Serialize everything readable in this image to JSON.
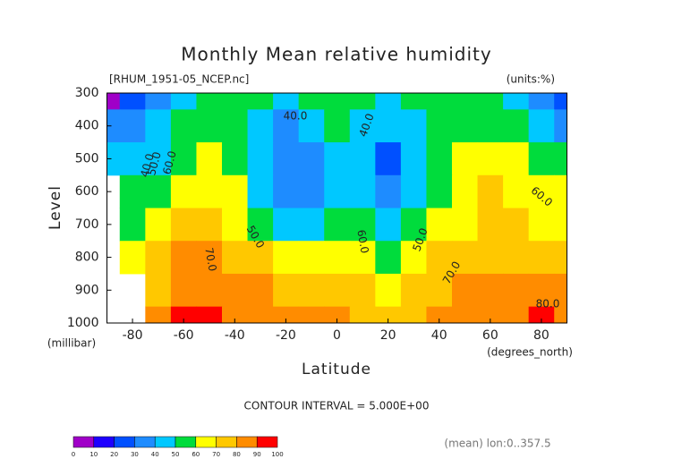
{
  "chart_data": {
    "type": "contour",
    "title": "Monthly Mean relative humidity",
    "subtitle": "[RHUM_1951-05_NCEP.nc]",
    "units_label": "(units:%)",
    "x_label": "Latitude",
    "x_unit": "(degrees_north)",
    "y_label": "Level",
    "y_unit": "(millibar)",
    "contour_interval": "CONTOUR INTERVAL = 5.000E+00",
    "footnote": "(mean) lon:0..357.5",
    "x": [
      -90,
      -80,
      -70,
      -60,
      -50,
      -40,
      -30,
      -20,
      -10,
      0,
      10,
      20,
      30,
      40,
      50,
      60,
      70,
      80,
      90
    ],
    "levels": [
      300,
      400,
      500,
      600,
      700,
      800,
      900,
      1000
    ],
    "values": [
      [
        5,
        20,
        30,
        45,
        50,
        55,
        50,
        45,
        50,
        55,
        50,
        45,
        50,
        55,
        55,
        50,
        40,
        30,
        25
      ],
      [
        30,
        30,
        40,
        50,
        55,
        50,
        45,
        35,
        40,
        50,
        45,
        40,
        45,
        50,
        55,
        55,
        55,
        45,
        35
      ],
      [
        45,
        45,
        45,
        55,
        60,
        55,
        45,
        35,
        35,
        45,
        40,
        25,
        40,
        50,
        60,
        60,
        60,
        55,
        50
      ],
      [
        null,
        50,
        55,
        60,
        65,
        60,
        45,
        35,
        35,
        45,
        45,
        35,
        45,
        55,
        65,
        70,
        65,
        60,
        60
      ],
      [
        null,
        55,
        65,
        70,
        70,
        60,
        50,
        40,
        45,
        55,
        55,
        40,
        50,
        60,
        65,
        70,
        70,
        65,
        65
      ],
      [
        null,
        60,
        70,
        80,
        80,
        75,
        70,
        60,
        60,
        65,
        65,
        55,
        65,
        70,
        75,
        75,
        75,
        75,
        75
      ],
      [
        null,
        null,
        75,
        85,
        85,
        85,
        80,
        75,
        75,
        75,
        70,
        65,
        70,
        75,
        80,
        80,
        80,
        80,
        80
      ],
      [
        null,
        null,
        80,
        90,
        90,
        85,
        85,
        80,
        80,
        80,
        75,
        75,
        75,
        80,
        85,
        85,
        85,
        90,
        85
      ]
    ],
    "xlim": [
      -90,
      90
    ],
    "ylim": [
      1000,
      300
    ],
    "xticks": [
      -80,
      -60,
      -40,
      -20,
      0,
      20,
      40,
      60,
      80
    ],
    "yticks": [
      300,
      400,
      500,
      600,
      700,
      800,
      900,
      1000
    ],
    "contour_labels": [
      "40.0",
      "40.0",
      "40.0",
      "50.0",
      "60.0",
      "50.0",
      "60.0",
      "50.0",
      "70.0",
      "70.0",
      "60.0",
      "80.0"
    ],
    "colorbar": {
      "levels": [
        0,
        10,
        20,
        30,
        40,
        50,
        60,
        70,
        80,
        90,
        100
      ],
      "colors": [
        "#a000c8",
        "#1e00ff",
        "#0050ff",
        "#1e8cff",
        "#00c8ff",
        "#00dc3c",
        "#ffff00",
        "#ffc800",
        "#ff8c00",
        "#ff0000"
      ]
    }
  }
}
